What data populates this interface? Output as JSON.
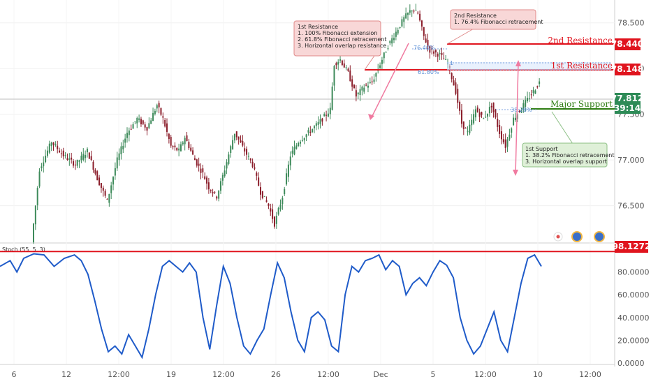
{
  "chart_data": {
    "type": "candlestick",
    "title": "",
    "price_axis": {
      "ticks": [
        "76.500",
        "77.000",
        "77.500",
        "78.000",
        "78.500"
      ],
      "ylim": [
        76.1,
        78.75
      ]
    },
    "time_axis": {
      "ticks": [
        "6",
        "12",
        "12:00",
        "19",
        "12:00",
        "26",
        "12:00",
        "Dec",
        "5",
        "12:00",
        "10",
        "12:00"
      ]
    },
    "ohlc_path": [
      [
        0,
        76.1
      ],
      [
        4,
        76.9
      ],
      [
        10,
        77.2
      ],
      [
        16,
        77.05
      ],
      [
        22,
        76.95
      ],
      [
        28,
        77.1
      ],
      [
        33,
        76.8
      ],
      [
        38,
        76.55
      ],
      [
        43,
        77.0
      ],
      [
        48,
        77.3
      ],
      [
        53,
        77.45
      ],
      [
        58,
        77.35
      ],
      [
        63,
        77.6
      ],
      [
        66,
        77.45
      ],
      [
        70,
        77.15
      ],
      [
        74,
        77.1
      ],
      [
        77,
        77.25
      ],
      [
        82,
        77.0
      ],
      [
        86,
        76.85
      ],
      [
        89,
        76.7
      ],
      [
        93,
        76.6
      ],
      [
        97,
        76.9
      ],
      [
        102,
        77.3
      ],
      [
        107,
        77.1
      ],
      [
        111,
        76.95
      ],
      [
        115,
        76.65
      ],
      [
        119,
        76.5
      ],
      [
        122,
        76.3
      ],
      [
        126,
        76.6
      ],
      [
        130,
        77.05
      ],
      [
        134,
        77.2
      ],
      [
        139,
        77.3
      ],
      [
        144,
        77.4
      ],
      [
        150,
        77.55
      ],
      [
        152,
        78.05
      ],
      [
        155,
        78.1
      ],
      [
        159,
        77.95
      ],
      [
        163,
        77.7
      ],
      [
        167,
        77.8
      ],
      [
        171,
        77.85
      ],
      [
        175,
        78.05
      ],
      [
        179,
        78.25
      ],
      [
        183,
        78.4
      ],
      [
        187,
        78.55
      ],
      [
        191,
        78.65
      ],
      [
        194,
        78.6
      ],
      [
        197,
        78.35
      ],
      [
        200,
        78.2
      ],
      [
        205,
        78.15
      ],
      [
        209,
        78.05
      ],
      [
        213,
        77.75
      ],
      [
        216,
        77.4
      ],
      [
        219,
        77.3
      ],
      [
        223,
        77.55
      ],
      [
        227,
        77.45
      ],
      [
        231,
        77.6
      ],
      [
        235,
        77.3
      ],
      [
        238,
        77.15
      ],
      [
        242,
        77.45
      ],
      [
        247,
        77.6
      ],
      [
        252,
        77.75
      ],
      [
        255,
        77.85
      ]
    ],
    "levels": [
      {
        "name": "2nd Resistance",
        "value": 78.44,
        "tag": "78.440",
        "color": "#e0141e"
      },
      {
        "name": "1st Resistance",
        "value": 78.148,
        "tag": "78.148",
        "color": "#e0141e"
      },
      {
        "name": "Major Support",
        "value": 77.65,
        "tag": "",
        "color": "#2e7d12"
      }
    ],
    "current_price": {
      "tag": "77.812",
      "countdown": "39:14",
      "color": "#2e8b57"
    },
    "fib_labels": [
      "76.40%",
      "61.80%",
      "38.20%",
      "1"
    ],
    "annotations": [
      {
        "id": "res1",
        "lines": [
          "1st Resistance",
          "1. 100% Fibonacci extension",
          "2. 61.8% Fibonacci retracement",
          "3. Horizontal overlap resistance"
        ],
        "color": "#f8d7d7",
        "border": "#e08a8a"
      },
      {
        "id": "res2",
        "lines": [
          "2nd Resistance",
          "1. 76.4% Fibonacci retracement"
        ],
        "color": "#f8d7d7",
        "border": "#e08a8a"
      },
      {
        "id": "sup1",
        "lines": [
          "1st Support",
          "1. 38.2% Fibonacci retracement",
          "3. Horizontal overlap support"
        ],
        "color": "#dff0d8",
        "border": "#8cc085"
      }
    ],
    "oscillator": {
      "name": "Stoch (55, 5, 3)",
      "axis_ticks": [
        "0.0000",
        "20.0000",
        "40.0000",
        "60.0000",
        "80.0000"
      ],
      "ylim": [
        0,
        100
      ],
      "level": {
        "tag": "98.1272",
        "color": "#e0141e",
        "value": 98
      },
      "series": [
        [
          0,
          85
        ],
        [
          6,
          90
        ],
        [
          10,
          80
        ],
        [
          14,
          92
        ],
        [
          20,
          96
        ],
        [
          26,
          95
        ],
        [
          32,
          85
        ],
        [
          38,
          92
        ],
        [
          44,
          95
        ],
        [
          48,
          90
        ],
        [
          52,
          78
        ],
        [
          56,
          55
        ],
        [
          60,
          30
        ],
        [
          64,
          10
        ],
        [
          68,
          15
        ],
        [
          72,
          8
        ],
        [
          76,
          25
        ],
        [
          80,
          15
        ],
        [
          84,
          5
        ],
        [
          88,
          30
        ],
        [
          92,
          60
        ],
        [
          96,
          85
        ],
        [
          100,
          90
        ],
        [
          104,
          85
        ],
        [
          108,
          80
        ],
        [
          112,
          88
        ],
        [
          116,
          80
        ],
        [
          120,
          40
        ],
        [
          124,
          12
        ],
        [
          128,
          50
        ],
        [
          132,
          85
        ],
        [
          136,
          70
        ],
        [
          140,
          40
        ],
        [
          144,
          15
        ],
        [
          148,
          8
        ],
        [
          152,
          20
        ],
        [
          156,
          30
        ],
        [
          160,
          60
        ],
        [
          164,
          88
        ],
        [
          168,
          75
        ],
        [
          172,
          45
        ],
        [
          176,
          20
        ],
        [
          180,
          10
        ],
        [
          184,
          40
        ],
        [
          188,
          45
        ],
        [
          192,
          38
        ],
        [
          196,
          15
        ],
        [
          200,
          10
        ],
        [
          204,
          60
        ],
        [
          208,
          85
        ],
        [
          212,
          80
        ],
        [
          216,
          90
        ],
        [
          220,
          92
        ],
        [
          224,
          95
        ],
        [
          228,
          82
        ],
        [
          232,
          90
        ],
        [
          236,
          85
        ],
        [
          240,
          60
        ],
        [
          244,
          70
        ],
        [
          248,
          75
        ],
        [
          252,
          68
        ],
        [
          256,
          80
        ],
        [
          260,
          90
        ],
        [
          264,
          86
        ],
        [
          268,
          75
        ],
        [
          272,
          40
        ],
        [
          276,
          20
        ],
        [
          280,
          8
        ],
        [
          284,
          15
        ],
        [
          288,
          30
        ],
        [
          292,
          45
        ],
        [
          296,
          20
        ],
        [
          300,
          10
        ],
        [
          304,
          40
        ],
        [
          308,
          70
        ],
        [
          312,
          92
        ],
        [
          316,
          95
        ],
        [
          320,
          85
        ]
      ]
    }
  }
}
